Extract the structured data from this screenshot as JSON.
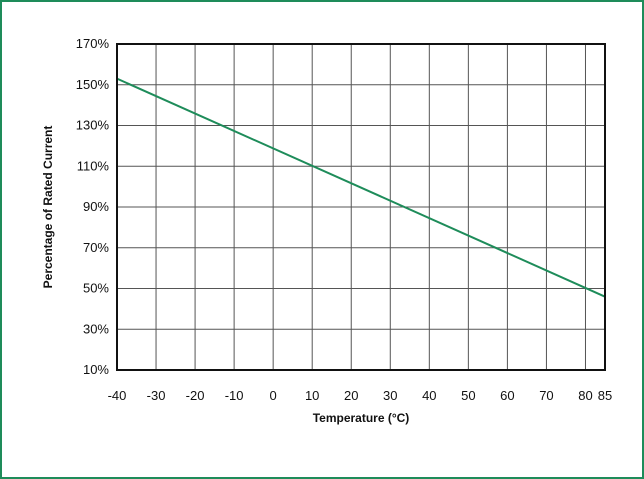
{
  "chart_data": {
    "type": "line",
    "title": "",
    "xlabel": "Temperature (°C)",
    "ylabel": "Percentage of Rated Current",
    "xlim": [
      -40,
      85
    ],
    "ylim": [
      10,
      170
    ],
    "x_ticks": [
      -40,
      -30,
      -20,
      -10,
      0,
      10,
      20,
      30,
      40,
      50,
      60,
      70,
      80,
      85
    ],
    "x_tick_labels": [
      "-40",
      "-30",
      "-20",
      "-10",
      "0",
      "10",
      "20",
      "30",
      "40",
      "50",
      "60",
      "70",
      "80",
      "85"
    ],
    "y_ticks": [
      10,
      30,
      50,
      70,
      90,
      110,
      130,
      150,
      170
    ],
    "y_tick_labels": [
      "10%",
      "30%",
      "50%",
      "70%",
      "90%",
      "110%",
      "130%",
      "150%",
      "170%"
    ],
    "grid": true,
    "series": [
      {
        "x": [
          -40,
          85
        ],
        "y": [
          153,
          46
        ],
        "color": "#1e8c5a"
      }
    ]
  }
}
